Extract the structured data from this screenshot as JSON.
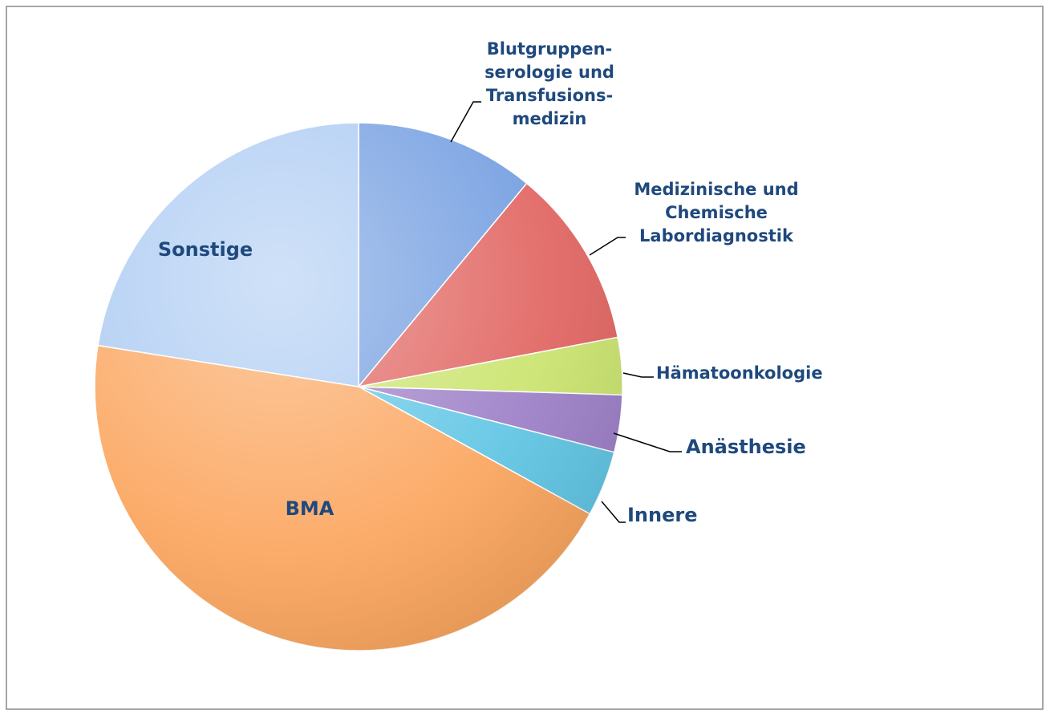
{
  "chart_data": {
    "type": "pie",
    "categories": [
      "Blutgruppen-\nserologie und\nTransfusions-\nmedizin",
      "Medizinische und\nChemische\nLabordiagnostik",
      "Hämatoonkologie",
      "Anästhesie",
      "Innere",
      "BMA",
      "Sonstige"
    ],
    "values": [
      11,
      11,
      3.5,
      3.5,
      4,
      44.5,
      22.5
    ],
    "colors": [
      "#6f9be0",
      "#e0605c",
      "#c9e36a",
      "#9a7cc6",
      "#5cc4e4",
      "#fba35a",
      "#a9c9f2"
    ]
  }
}
